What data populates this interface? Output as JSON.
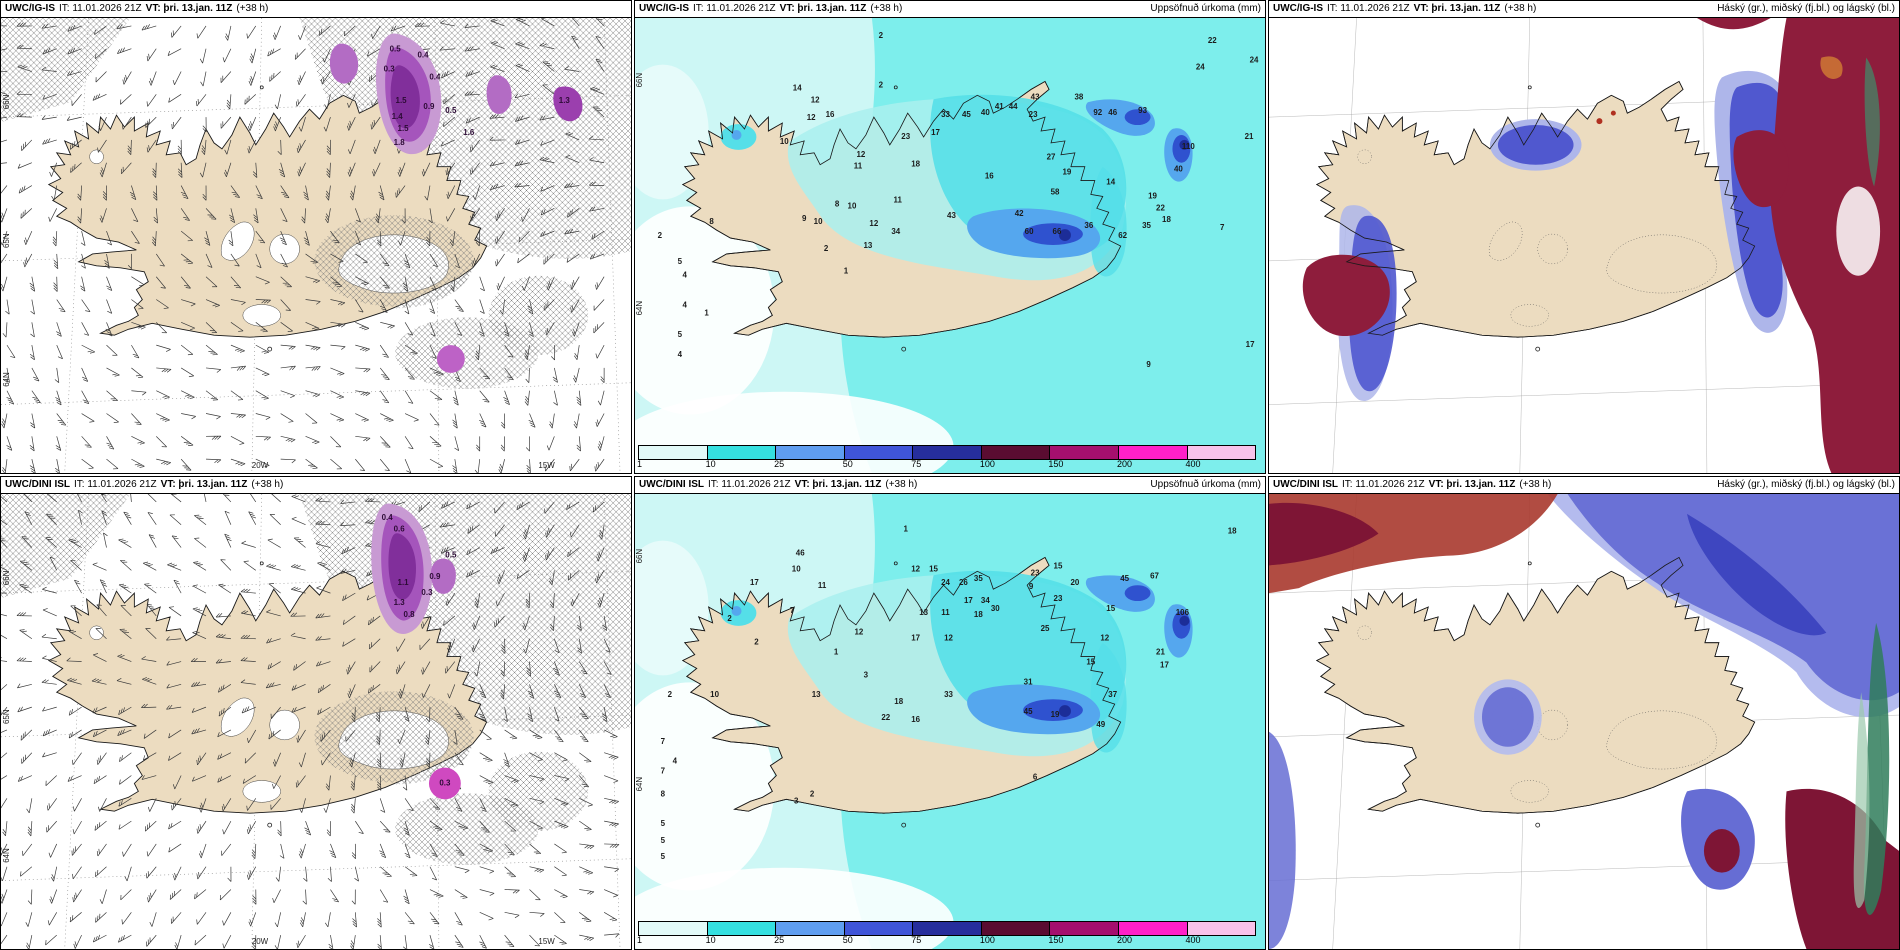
{
  "colors": {
    "land": "#ecdcc0",
    "coast": "#1a1a1a",
    "ocean_cyan": "#7deeec",
    "ocean_pale": "#cdf7f5",
    "hatch": "#777777",
    "precip_purple_light": "#c89ad3",
    "precip_purple": "#a555bc",
    "precip_purple_dark": "#812f9b",
    "cloud_high_maroon": "#8e1d3c",
    "cloud_mid_blue": "#5058cf",
    "cloud_low_pale": "#aeb6ea",
    "cloud_green": "#2f7d5a"
  },
  "legend": {
    "title": "Uppsöfnuð úrkoma (mm)",
    "ticks": [
      "1",
      "10",
      "25",
      "50",
      "75",
      "100",
      "150",
      "200",
      "400"
    ],
    "colors": [
      "#e2faf8",
      "#35e0e0",
      "#5f9ef0",
      "#3f55d8",
      "#262e9c",
      "#5a0c31",
      "#a50f6e",
      "#ff20c8",
      "#f8c2ea"
    ]
  },
  "panels": [
    {
      "id": "wind-igis",
      "header": {
        "model": "UWC/IG-IS",
        "it": "IT: 11.01.2026 21Z",
        "vt": "VT: þri. 13.jan. 11Z",
        "lead": "(+38 h)",
        "right": ""
      },
      "axis": {
        "lat": [
          "66N",
          "65N",
          "64N"
        ],
        "lon": [
          "20W",
          "15W"
        ]
      },
      "values": [
        [
          "0.5",
          396,
          34
        ],
        [
          "0.4",
          424,
          40
        ],
        [
          "0.3",
          390,
          54
        ],
        [
          "0.4",
          436,
          62
        ],
        [
          "1.5",
          402,
          86
        ],
        [
          "0.9",
          430,
          92
        ],
        [
          "0.5",
          452,
          96
        ],
        [
          "1.4",
          398,
          102
        ],
        [
          "1.5",
          404,
          114
        ],
        [
          "1.8",
          400,
          128
        ],
        [
          "1.3",
          566,
          86
        ],
        [
          "1.6",
          470,
          118
        ]
      ]
    },
    {
      "id": "precip-igis",
      "header": {
        "model": "UWC/IG-IS",
        "it": "IT: 11.01.2026 21Z",
        "vt": "VT: þri. 13.jan. 11Z",
        "lead": "(+38 h)",
        "right": "Uppsöfnuð úrkoma (mm)"
      },
      "axis": {
        "lat": [
          "66N",
          "64N"
        ],
        "lon": []
      },
      "values": [
        [
          "2",
          247,
          20
        ],
        [
          "22",
          580,
          25
        ],
        [
          "24",
          568,
          52
        ],
        [
          "24",
          622,
          45
        ],
        [
          "2",
          247,
          70
        ],
        [
          "14",
          163,
          73
        ],
        [
          "12",
          181,
          85
        ],
        [
          "16",
          196,
          100
        ],
        [
          "12",
          177,
          103
        ],
        [
          "10",
          150,
          127
        ],
        [
          "33",
          312,
          100
        ],
        [
          "45",
          333,
          100
        ],
        [
          "40",
          352,
          98
        ],
        [
          "41",
          366,
          92
        ],
        [
          "44",
          380,
          92
        ],
        [
          "43",
          402,
          82
        ],
        [
          "38",
          446,
          82
        ],
        [
          "23",
          400,
          100
        ],
        [
          "92",
          465,
          98
        ],
        [
          "46",
          480,
          98
        ],
        [
          "93",
          510,
          96
        ],
        [
          "110",
          556,
          132
        ],
        [
          "21",
          617,
          122
        ],
        [
          "23",
          272,
          122
        ],
        [
          "17",
          302,
          118
        ],
        [
          "27",
          418,
          143
        ],
        [
          "12",
          227,
          140
        ],
        [
          "11",
          224,
          152
        ],
        [
          "18",
          282,
          150
        ],
        [
          "16",
          356,
          162
        ],
        [
          "19",
          434,
          158
        ],
        [
          "40",
          546,
          155
        ],
        [
          "58",
          422,
          178
        ],
        [
          "14",
          478,
          168
        ],
        [
          "19",
          520,
          182
        ],
        [
          "22",
          528,
          194
        ],
        [
          "18",
          534,
          206
        ],
        [
          "8",
          203,
          190
        ],
        [
          "10",
          218,
          192
        ],
        [
          "11",
          264,
          186
        ],
        [
          "9",
          170,
          205
        ],
        [
          "10",
          184,
          208
        ],
        [
          "8",
          77,
          208
        ],
        [
          "42",
          386,
          200
        ],
        [
          "43",
          318,
          202
        ],
        [
          "35",
          514,
          212
        ],
        [
          "60",
          396,
          218
        ],
        [
          "66",
          424,
          218
        ],
        [
          "36",
          456,
          212
        ],
        [
          "62",
          490,
          222
        ],
        [
          "7",
          590,
          214
        ],
        [
          "34",
          262,
          218
        ],
        [
          "12",
          240,
          210
        ],
        [
          "13",
          234,
          232
        ],
        [
          "2",
          25,
          222
        ],
        [
          "2",
          192,
          235
        ],
        [
          "1",
          212,
          258
        ],
        [
          "5",
          45,
          248
        ],
        [
          "4",
          50,
          262
        ],
        [
          "4",
          50,
          292
        ],
        [
          "1",
          72,
          300
        ],
        [
          "5",
          45,
          322
        ],
        [
          "4",
          45,
          342
        ],
        [
          "17",
          618,
          332
        ],
        [
          "9",
          516,
          352
        ]
      ]
    },
    {
      "id": "cloud-igis",
      "header": {
        "model": "UWC/IG-IS",
        "it": "IT: 11.01.2026 21Z",
        "vt": "VT: þri. 13.jan. 11Z",
        "lead": "(+38 h)",
        "right": "Háský (gr.), miðský (fj.bl.) og lágský (bl.)"
      },
      "axis": {
        "lat": [],
        "lon": []
      }
    },
    {
      "id": "wind-dini",
      "header": {
        "model": "UWC/DINI ISL",
        "it": "IT: 11.01.2026 21Z",
        "vt": "VT: þri. 13.jan. 11Z",
        "lead": "(+38 h)",
        "right": ""
      },
      "axis": {
        "lat": [
          "66N",
          "65N",
          "64N"
        ],
        "lon": [
          "20W",
          "15W"
        ]
      },
      "values": [
        [
          "0.4",
          388,
          26
        ],
        [
          "0.6",
          400,
          38
        ],
        [
          "0.5",
          452,
          64
        ],
        [
          "0.9",
          436,
          86
        ],
        [
          "1.1",
          404,
          92
        ],
        [
          "0.3",
          428,
          102
        ],
        [
          "1.3",
          400,
          112
        ],
        [
          "0.8",
          410,
          124
        ],
        [
          "0.3",
          446,
          294
        ]
      ]
    },
    {
      "id": "precip-dini",
      "header": {
        "model": "UWC/DINI ISL",
        "it": "IT: 11.01.2026 21Z",
        "vt": "VT: þri. 13.jan. 11Z",
        "lead": "(+38 h)",
        "right": "Uppsöfnuð úrkoma (mm)"
      },
      "axis": {
        "lat": [
          "66N",
          "64N"
        ],
        "lon": []
      },
      "values": [
        [
          "18",
          600,
          40
        ],
        [
          "1",
          272,
          38
        ],
        [
          "46",
          166,
          62
        ],
        [
          "10",
          162,
          78
        ],
        [
          "17",
          120,
          92
        ],
        [
          "11",
          188,
          95
        ],
        [
          "12",
          282,
          78
        ],
        [
          "15",
          300,
          78
        ],
        [
          "24",
          312,
          92
        ],
        [
          "26",
          330,
          92
        ],
        [
          "35",
          345,
          88
        ],
        [
          "23",
          402,
          82
        ],
        [
          "15",
          425,
          75
        ],
        [
          "9",
          398,
          96
        ],
        [
          "20",
          442,
          92
        ],
        [
          "45",
          492,
          88
        ],
        [
          "67",
          522,
          85
        ],
        [
          "23",
          425,
          108
        ],
        [
          "17",
          335,
          110
        ],
        [
          "34",
          352,
          110
        ],
        [
          "18",
          345,
          124
        ],
        [
          "30",
          362,
          118
        ],
        [
          "15",
          478,
          118
        ],
        [
          "106",
          550,
          122
        ],
        [
          "2",
          95,
          128
        ],
        [
          "13",
          290,
          122
        ],
        [
          "11",
          312,
          122
        ],
        [
          "7",
          158,
          120
        ],
        [
          "12",
          225,
          142
        ],
        [
          "17",
          282,
          148
        ],
        [
          "12",
          315,
          148
        ],
        [
          "25",
          412,
          138
        ],
        [
          "12",
          472,
          148
        ],
        [
          "2",
          122,
          152
        ],
        [
          "1",
          202,
          162
        ],
        [
          "3",
          232,
          185
        ],
        [
          "15",
          458,
          172
        ],
        [
          "21",
          528,
          162
        ],
        [
          "17",
          532,
          175
        ],
        [
          "31",
          395,
          192
        ],
        [
          "13",
          182,
          205
        ],
        [
          "10",
          80,
          205
        ],
        [
          "2",
          35,
          205
        ],
        [
          "18",
          265,
          212
        ],
        [
          "33",
          315,
          205
        ],
        [
          "22",
          252,
          228
        ],
        [
          "16",
          282,
          230
        ],
        [
          "37",
          480,
          205
        ],
        [
          "45",
          395,
          222
        ],
        [
          "19",
          422,
          225
        ],
        [
          "49",
          468,
          235
        ],
        [
          "7",
          28,
          252
        ],
        [
          "4",
          40,
          272
        ],
        [
          "7",
          28,
          282
        ],
        [
          "8",
          28,
          305
        ],
        [
          "2",
          178,
          305
        ],
        [
          "3",
          162,
          312
        ],
        [
          "6",
          402,
          288
        ],
        [
          "5",
          28,
          335
        ],
        [
          "5",
          28,
          352
        ],
        [
          "5",
          28,
          368
        ]
      ]
    },
    {
      "id": "cloud-dini",
      "header": {
        "model": "UWC/DINI ISL",
        "it": "IT: 11.01.2026 21Z",
        "vt": "VT: þri. 13.jan. 11Z",
        "lead": "(+38 h)",
        "right": "Háský (gr.), miðský (fj.bl.) og lágský (bl.)"
      },
      "axis": {
        "lat": [],
        "lon": []
      }
    }
  ]
}
